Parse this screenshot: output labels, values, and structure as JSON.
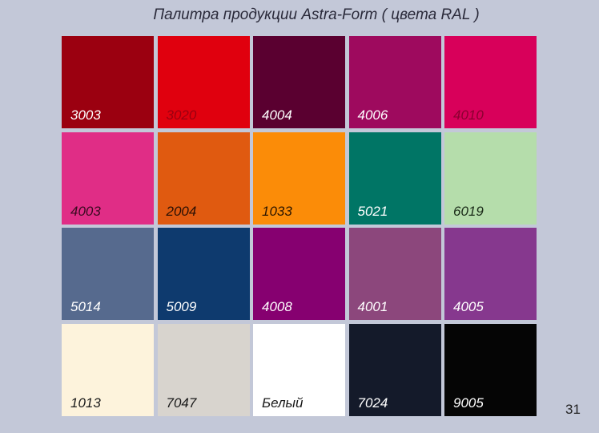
{
  "title": "Палитра продукции Astra-Form ( цвета RAL )",
  "page_number": "31",
  "swatches": [
    {
      "label": "3003",
      "color": "#9b0010",
      "text_color": "#ffffff"
    },
    {
      "label": "3020",
      "color": "#e0000e",
      "text_color": "#9a0010"
    },
    {
      "label": "4004",
      "color": "#5a0030",
      "text_color": "#ffffff"
    },
    {
      "label": "4006",
      "color": "#9e0a5e",
      "text_color": "#ffffff"
    },
    {
      "label": "4010",
      "color": "#d8005a",
      "text_color": "#8b0030"
    },
    {
      "label": "4003",
      "color": "#e02d86",
      "text_color": "#3a0a20"
    },
    {
      "label": "2004",
      "color": "#e05a10",
      "text_color": "#2a1005"
    },
    {
      "label": "1033",
      "color": "#fb8c08",
      "text_color": "#2a1500"
    },
    {
      "label": "5021",
      "color": "#007565",
      "text_color": "#ffffff"
    },
    {
      "label": "6019",
      "color": "#b5ddab",
      "text_color": "#1a2a18"
    },
    {
      "label": "5014",
      "color": "#566a8e",
      "text_color": "#ffffff"
    },
    {
      "label": "5009",
      "color": "#0e3a6e",
      "text_color": "#ffffff"
    },
    {
      "label": "4008",
      "color": "#860070",
      "text_color": "#ffffff"
    },
    {
      "label": "4001",
      "color": "#8c477c",
      "text_color": "#ffffff"
    },
    {
      "label": "4005",
      "color": "#86388e",
      "text_color": "#ffffff"
    },
    {
      "label": "1013",
      "color": "#fdf3dc",
      "text_color": "#1a1a1a"
    },
    {
      "label": "7047",
      "color": "#d8d4ce",
      "text_color": "#1a1a1a"
    },
    {
      "label": "Белый",
      "color": "#ffffff",
      "text_color": "#1a1a1a"
    },
    {
      "label": "7024",
      "color": "#141a2a",
      "text_color": "#ffffff"
    },
    {
      "label": "9005",
      "color": "#050505",
      "text_color": "#ffffff"
    }
  ]
}
